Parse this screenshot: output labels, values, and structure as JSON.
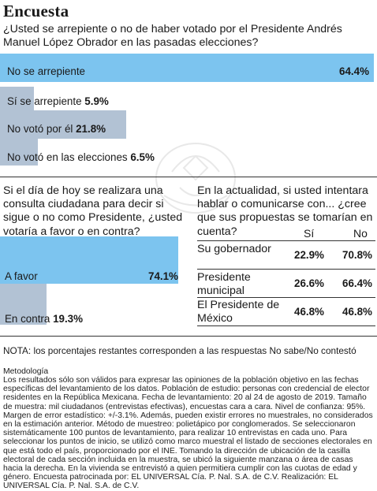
{
  "title": "Encuesta",
  "chart_data": [
    {
      "type": "bar",
      "title": "¿Usted se arrepiente o no de haber votado por el Presidente Andrés Manuel López Obrador en las pasadas elecciones?",
      "categories": [
        "No se arrepiente",
        "Sí se arrepiente",
        "No votó por él",
        "No votó en las elecciones"
      ],
      "values": [
        64.4,
        5.9,
        21.8,
        6.5
      ],
      "value_labels": [
        "64.4%",
        "5.9%",
        "21.8%",
        "6.5%"
      ],
      "xlim": [
        0,
        100
      ],
      "colors": [
        "#7cc4ef",
        "#b2c2d4",
        "#b2c2d4",
        "#b2c2d4"
      ]
    },
    {
      "type": "bar",
      "title": "Si el día de hoy se realizara una consulta ciudadana para decir si sigue o no como Presidente, ¿usted votaría a favor o en contra?",
      "categories": [
        "A favor",
        "En contra"
      ],
      "values": [
        74.1,
        19.3
      ],
      "value_labels": [
        "74.1%",
        "19.3%"
      ],
      "xlim": [
        0,
        100
      ],
      "colors": [
        "#7cc4ef",
        "#b2c2d4"
      ]
    },
    {
      "type": "table",
      "title": "En la actualidad, si usted intentara hablar o comunicarse con... ¿cree que sus propuestas se tomarían en cuenta?",
      "columns": [
        "Sí",
        "No"
      ],
      "rows": [
        {
          "label": "Su gobernador",
          "values": [
            "22.9%",
            "70.8%"
          ]
        },
        {
          "label": "Presidente municipal",
          "values": [
            "26.6%",
            "66.4%"
          ]
        },
        {
          "label": "El Presidente de México",
          "values": [
            "46.8%",
            "46.8%"
          ]
        }
      ]
    }
  ],
  "note": "NOTA: los porcentajes restantes corresponden a las respuestas No sabe/No contestó",
  "methodology_heading": "Metodología",
  "methodology": "Los resultados sólo son válidos para expresar las opiniones de la población objetivo en las fechas específicas del levantamiento de los datos. Población de estudio: personas con credencial de elector residentes en la República Mexicana. Fecha de levantamiento: 20 al 24 de agosto de 2019. Tamaño de muestra: mil ciudadanos (entrevistas efectivas), encuestas cara a cara. Nivel de confianza: 95%. Margen de error estadístico: +/-3.1%. Además, pueden existir errores no muestrales, no considerados en la estimación anterior. Método de muestreo: polietápico por conglomerados. Se seleccionaron sistemáticamente 100 puntos de levantamiento, para realizar 10 entrevistas en cada uno. Para seleccionar los puntos de inicio, se utilizó como marco muestral el listado de secciones electorales en que está todo el país, proporcionado por el INE. Tomando la dirección de ubicación de la casilla electoral de cada sección incluida en la muestra, se ubicó la siguiente manzana o área de casas hacia la derecha. En la vivienda se entrevistó a quien permitiera cumplir con las cuotas de edad y género. Encuesta patrocinada por: EL UNIVERSAL Cía. P. Nal. S.A. de C.V. Realización: EL UNIVERSAL Cía. P. Nal. S.A. de C.V.",
  "watermark_icon": "eagle-seal-icon"
}
